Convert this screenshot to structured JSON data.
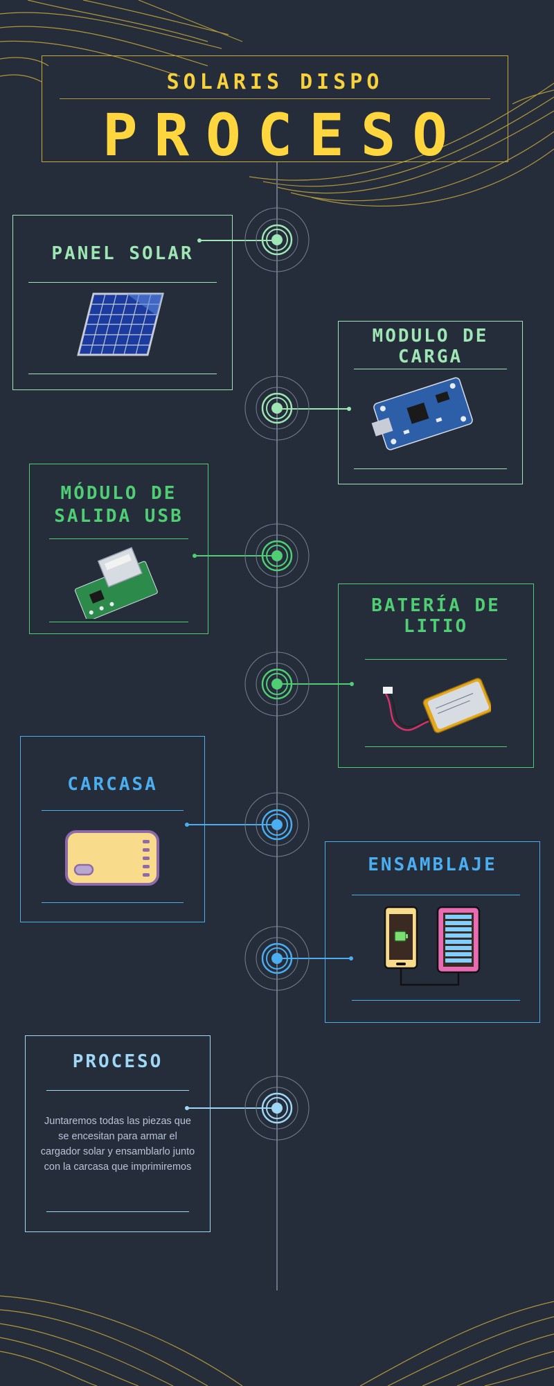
{
  "header": {
    "subtitle": "SOLARIS DISPO",
    "title": "PROCESO"
  },
  "steps": [
    {
      "title": "PANEL SOLAR",
      "image": "solar-panel"
    },
    {
      "title": "MODULO DE\nCARGA",
      "image": "charging-module"
    },
    {
      "title": "MÓDULO DE\nSALIDA USB",
      "image": "usb-module"
    },
    {
      "title": "BATERÍA DE\nLITIO",
      "image": "lithium-battery"
    },
    {
      "title": "CARCASA",
      "image": "power-bank-case"
    },
    {
      "title": "ENSAMBLAJE",
      "image": "phone-charging-from-power-bank"
    },
    {
      "title": "PROCESO",
      "description": "Juntaremos todas las piezas que se encesitan para armar el cargador solar y ensamblarlo junto con la carcasa que imprimiremos"
    }
  ],
  "colors": {
    "background": "#252d3b",
    "gold": "#ffd63d",
    "mint": "#9ee6b3",
    "green": "#4fce74",
    "blue": "#4aaef0",
    "light_blue": "#9fd8f7"
  }
}
